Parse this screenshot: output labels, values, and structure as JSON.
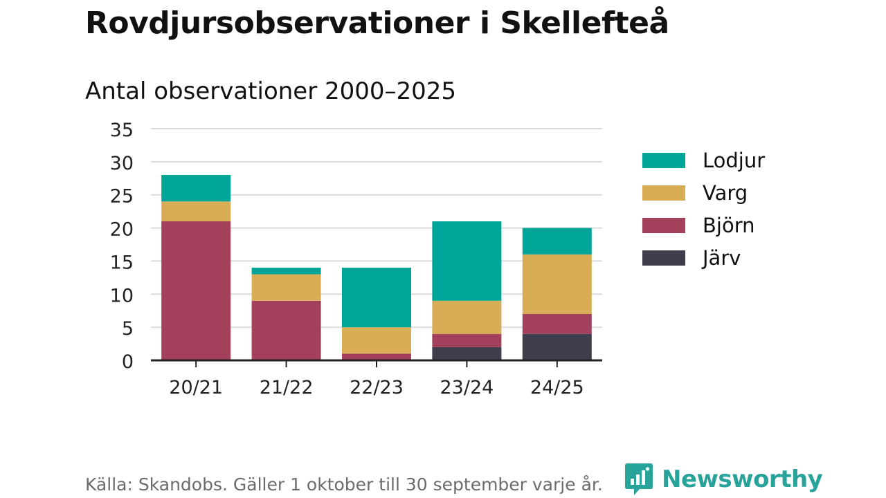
{
  "title": "Rovdjursobservationer i Skellefteå",
  "colors": {
    "Lodjur": "#00a59a",
    "Varg": "#d9ad56",
    "Björn": "#a3405c",
    "Järv": "#3f3e4d",
    "brand": "#27a39a"
  },
  "chart_data": {
    "type": "bar",
    "stacked": true,
    "title": "Antal observationer 2000–2025",
    "xlabel": "",
    "ylabel": "",
    "ylim": [
      0,
      35
    ],
    "yticks": [
      "0",
      "5",
      "10",
      "15",
      "20",
      "25",
      "30",
      "35"
    ],
    "categories": [
      "20/21",
      "21/22",
      "22/23",
      "23/24",
      "24/25"
    ],
    "series": [
      {
        "name": "Järv",
        "values": [
          0,
          0,
          0,
          2,
          4
        ]
      },
      {
        "name": "Björn",
        "values": [
          21,
          9,
          1,
          2,
          3
        ]
      },
      {
        "name": "Varg",
        "values": [
          3,
          4,
          4,
          5,
          9
        ]
      },
      {
        "name": "Lodjur",
        "values": [
          4,
          1,
          9,
          12,
          4
        ]
      }
    ],
    "legend": [
      "Lodjur",
      "Varg",
      "Björn",
      "Järv"
    ],
    "legend_position": "right"
  },
  "footer": {
    "source": "Källa: Skandobs. Gäller 1 oktober till 30 september varje år.",
    "brand": "Newsworthy",
    "brand_icon": "newsworthy-logo-icon"
  }
}
